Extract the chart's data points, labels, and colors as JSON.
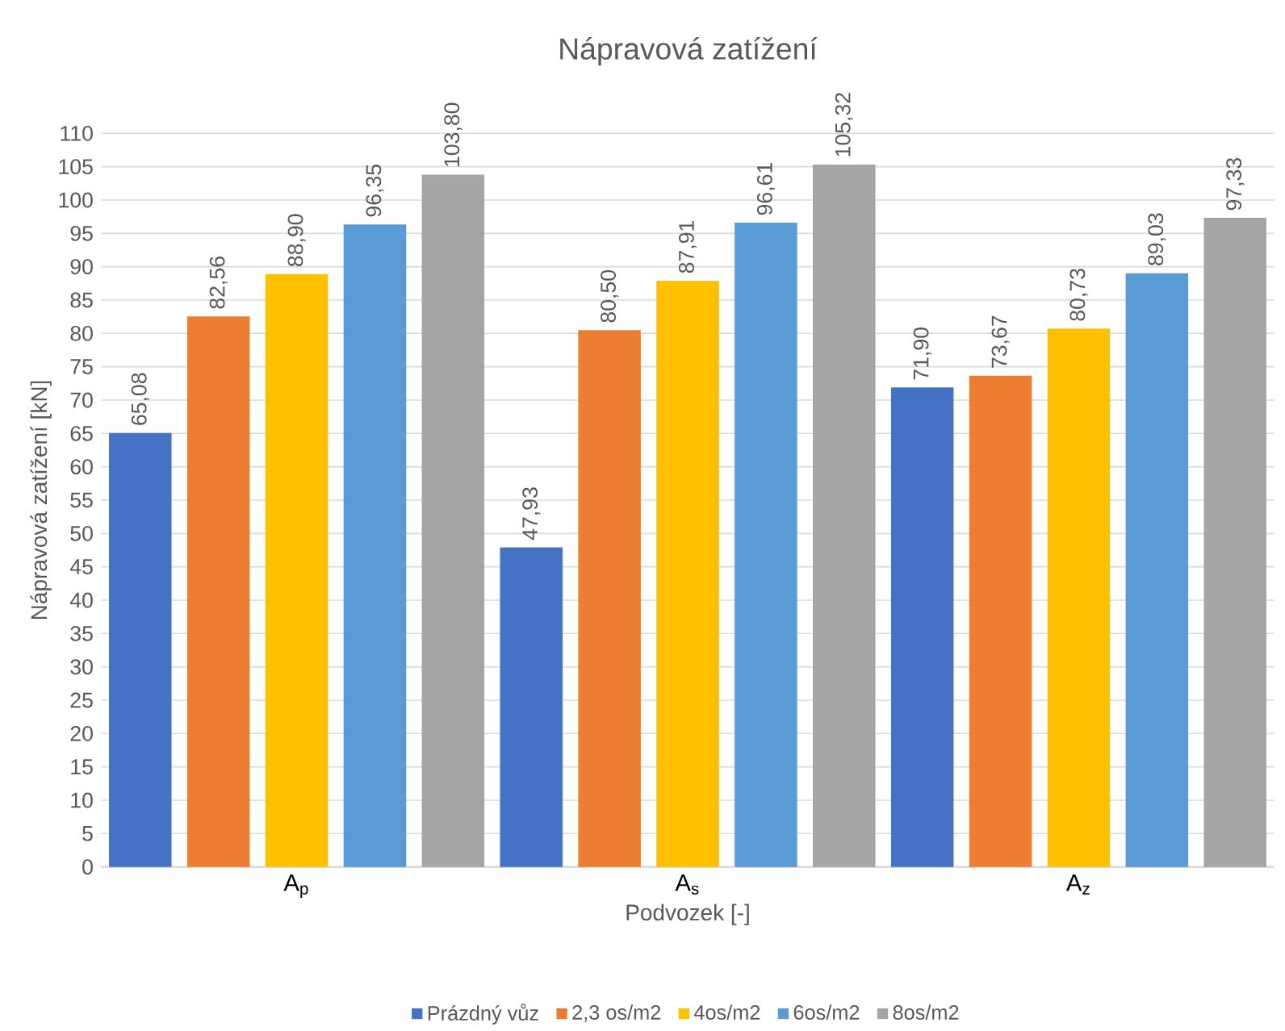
{
  "chart_data": {
    "type": "bar",
    "title": "Nápravová zatížení",
    "xlabel": "Podvozek [-]",
    "ylabel": "Nápravová zatížení [kN]",
    "categories": [
      "A$_{p}$",
      "A$_{s}$",
      "A$_{z}$"
    ],
    "series": [
      {
        "name": "Prázdný vůz",
        "color": "#4472c4",
        "values": [
          65.08,
          47.93,
          71.9
        ],
        "value_labels": [
          "65,08",
          "47,93",
          "71,90"
        ]
      },
      {
        "name": "2,3 os/m2",
        "color": "#ed7d31",
        "values": [
          82.56,
          80.5,
          73.67
        ],
        "value_labels": [
          "82,56",
          "80,50",
          "73,67"
        ]
      },
      {
        "name": "4os/m2",
        "color": "#ffc000",
        "values": [
          88.9,
          87.91,
          80.73
        ],
        "value_labels": [
          "88,90",
          "87,91",
          "80,73"
        ]
      },
      {
        "name": "6os/m2",
        "color": "#5b9bd5",
        "values": [
          96.35,
          96.61,
          89.03
        ],
        "value_labels": [
          "96,35",
          "96,61",
          "89,03"
        ]
      },
      {
        "name": "8os/m2",
        "color": "#a5a5a5",
        "values": [
          103.8,
          105.32,
          97.33
        ],
        "value_labels": [
          "103,80",
          "105,32",
          "97,33"
        ]
      }
    ],
    "ylim": [
      0,
      110
    ],
    "yticks": [
      0,
      5,
      10,
      15,
      20,
      25,
      30,
      35,
      40,
      45,
      50,
      55,
      60,
      65,
      70,
      75,
      80,
      85,
      90,
      95,
      100,
      105,
      110
    ],
    "grid": "y",
    "legend": "bottom"
  }
}
